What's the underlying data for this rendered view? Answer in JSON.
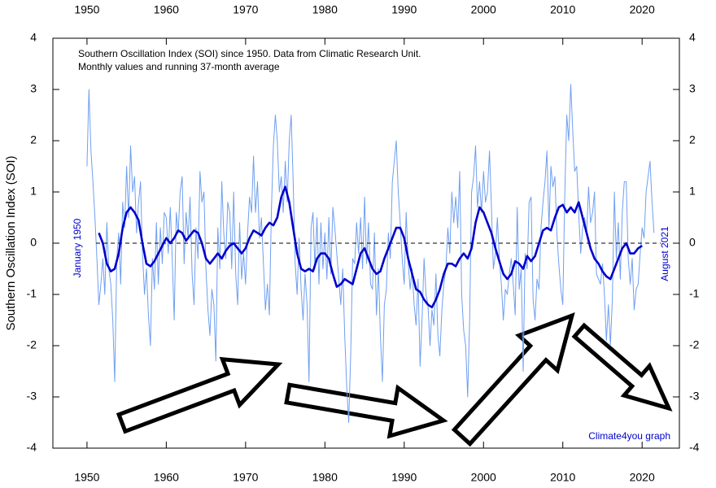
{
  "chart_data": {
    "type": "line",
    "title": "Southern Oscillation Index (SOI) since 1950. Data from Climatic Research Unit.",
    "subtitle": "Monthly values and running 37-month average",
    "ylabel": "Southern Oscillation Index (SOI)",
    "annotations": [
      "January 1950",
      "August 2021",
      "Climate4you graph"
    ],
    "xlim": [
      1945.7,
      2024.7
    ],
    "xticks": [
      1950,
      1960,
      1970,
      1980,
      1990,
      2000,
      2010,
      2020
    ],
    "ylim": [
      -4,
      4
    ],
    "yticks": [
      -4,
      -3,
      -2,
      -1,
      0,
      1,
      2,
      3,
      4
    ],
    "reference_line": 0,
    "series": [
      {
        "color": "#6f9ff0",
        "x": [
          1950,
          1950.25,
          1950.5,
          1950.75,
          1951,
          1951.25,
          1951.5,
          1951.75,
          1952,
          1952.25,
          1952.5,
          1952.75,
          1953,
          1953.25,
          1953.5,
          1953.75,
          1954,
          1954.25,
          1954.5,
          1954.75,
          1955,
          1955.25,
          1955.5,
          1955.75,
          1956,
          1956.25,
          1956.5,
          1956.75,
          1957,
          1957.25,
          1957.5,
          1957.75,
          1958,
          1958.25,
          1958.5,
          1958.75,
          1959,
          1959.25,
          1959.5,
          1959.75,
          1960,
          1960.25,
          1960.5,
          1960.75,
          1961,
          1961.25,
          1961.5,
          1961.75,
          1962,
          1962.25,
          1962.5,
          1962.75,
          1963,
          1963.25,
          1963.5,
          1963.75,
          1964,
          1964.25,
          1964.5,
          1964.75,
          1965,
          1965.25,
          1965.5,
          1965.75,
          1966,
          1966.25,
          1966.5,
          1966.75,
          1967,
          1967.25,
          1967.5,
          1967.75,
          1968,
          1968.25,
          1968.5,
          1968.75,
          1969,
          1969.25,
          1969.5,
          1969.75,
          1970,
          1970.25,
          1970.5,
          1970.75,
          1971,
          1971.25,
          1971.5,
          1971.75,
          1972,
          1972.25,
          1972.5,
          1972.75,
          1973,
          1973.25,
          1973.5,
          1973.75,
          1974,
          1974.25,
          1974.5,
          1974.75,
          1975,
          1975.25,
          1975.5,
          1975.75,
          1976,
          1976.25,
          1976.5,
          1976.75,
          1977,
          1977.25,
          1977.5,
          1977.75,
          1978,
          1978.25,
          1978.5,
          1978.75,
          1979,
          1979.25,
          1979.5,
          1979.75,
          1980,
          1980.25,
          1980.5,
          1980.75,
          1981,
          1981.25,
          1981.5,
          1981.75,
          1982,
          1982.25,
          1982.5,
          1982.75,
          1983,
          1983.25,
          1983.5,
          1983.75,
          1984,
          1984.25,
          1984.5,
          1984.75,
          1985,
          1985.25,
          1985.5,
          1985.75,
          1986,
          1986.25,
          1986.5,
          1986.75,
          1987,
          1987.25,
          1987.5,
          1987.75,
          1988,
          1988.25,
          1988.5,
          1988.75,
          1989,
          1989.25,
          1989.5,
          1989.75,
          1990,
          1990.25,
          1990.5,
          1990.75,
          1991,
          1991.25,
          1991.5,
          1991.75,
          1992,
          1992.25,
          1992.5,
          1992.75,
          1993,
          1993.25,
          1993.5,
          1993.75,
          1994,
          1994.25,
          1994.5,
          1994.75,
          1995,
          1995.25,
          1995.5,
          1995.75,
          1996,
          1996.25,
          1996.5,
          1996.75,
          1997,
          1997.25,
          1997.5,
          1997.75,
          1998,
          1998.25,
          1998.5,
          1998.75,
          1999,
          1999.25,
          1999.5,
          1999.75,
          2000,
          2000.25,
          2000.5,
          2000.75,
          2001,
          2001.25,
          2001.5,
          2001.75,
          2002,
          2002.25,
          2002.5,
          2002.75,
          2003,
          2003.25,
          2003.5,
          2003.75,
          2004,
          2004.25,
          2004.5,
          2004.75,
          2005,
          2005.25,
          2005.5,
          2005.75,
          2006,
          2006.25,
          2006.5,
          2006.75,
          2007,
          2007.25,
          2007.5,
          2007.75,
          2008,
          2008.25,
          2008.5,
          2008.75,
          2009,
          2009.25,
          2009.5,
          2009.75,
          2010,
          2010.25,
          2010.5,
          2010.75,
          2011,
          2011.25,
          2011.5,
          2011.75,
          2012,
          2012.25,
          2012.5,
          2012.75,
          2013,
          2013.25,
          2013.5,
          2013.75,
          2014,
          2014.25,
          2014.5,
          2014.75,
          2015,
          2015.25,
          2015.5,
          2015.75,
          2016,
          2016.25,
          2016.5,
          2016.75,
          2017,
          2017.25,
          2017.5,
          2017.75,
          2018,
          2018.25,
          2018.5,
          2018.75,
          2019,
          2019.25,
          2019.5,
          2019.75,
          2020,
          2020.25,
          2020.5,
          2020.75,
          2021,
          2021.25,
          2021.5
        ],
        "values": [
          1.5,
          3.0,
          1.8,
          1.2,
          0.5,
          -0.3,
          -1.2,
          -0.8,
          -0.3,
          -1.0,
          0.4,
          -0.5,
          -0.8,
          -1.5,
          -2.7,
          -0.3,
          0.2,
          -0.8,
          0.8,
          0.3,
          1.5,
          0.5,
          1.9,
          1.0,
          1.3,
          0.2,
          0.8,
          1.2,
          -0.2,
          -1.0,
          -0.5,
          -1.4,
          -2.0,
          -0.3,
          -0.9,
          0.4,
          -0.8,
          0.3,
          -0.4,
          0.6,
          0.5,
          -0.2,
          0.7,
          -0.3,
          -1.5,
          0.6,
          0.2,
          1.0,
          1.3,
          -0.4,
          0.6,
          0.1,
          0.9,
          -0.6,
          -1.2,
          0.3,
          -0.3,
          1.4,
          0.8,
          1.0,
          -0.5,
          -1.3,
          -1.8,
          -0.9,
          -1.2,
          -2.3,
          0.3,
          -0.5,
          1.2,
          0.2,
          -0.3,
          0.8,
          0.6,
          -0.5,
          1.0,
          -0.6,
          -1.2,
          0.4,
          -0.7,
          -0.2,
          -0.8,
          0.2,
          0.9,
          0.6,
          1.7,
          0.6,
          1.2,
          0.1,
          0.5,
          -0.4,
          -1.3,
          -0.8,
          -1.4,
          0.6,
          1.9,
          2.5,
          2.0,
          1.0,
          1.3,
          0.6,
          1.6,
          0.8,
          2.0,
          2.5,
          1.2,
          -0.4,
          -1.0,
          0.1,
          -0.9,
          -1.5,
          -0.6,
          -1.2,
          -2.7,
          0.3,
          0.6,
          -0.5,
          0.5,
          -0.8,
          0.4,
          -0.5,
          0.2,
          -0.7,
          0.5,
          -0.6,
          0.7,
          0.3,
          -0.2,
          -0.7,
          -1.2,
          -0.5,
          -1.8,
          -2.8,
          -3.5,
          -2.2,
          -0.3,
          -0.4,
          0.4,
          -0.2,
          0.5,
          -0.5,
          0.9,
          -0.4,
          0.4,
          -0.8,
          -0.9,
          0.2,
          -1.4,
          -0.5,
          -1.8,
          -2.7,
          -1.2,
          -0.9,
          0.2,
          -0.3,
          1.2,
          1.6,
          2.0,
          1.0,
          0.4,
          -0.3,
          -0.8,
          0.6,
          -0.4,
          -0.9,
          -0.5,
          -1.2,
          -1.6,
          -0.7,
          -2.4,
          -1.5,
          -0.3,
          -1.0,
          -1.2,
          -2.0,
          -1.3,
          -1.6,
          -0.6,
          -1.8,
          -2.2,
          -1.3,
          -0.8,
          -0.5,
          0.3,
          -0.2,
          1.0,
          0.4,
          0.9,
          0.3,
          1.4,
          -1.0,
          -1.7,
          -2.0,
          -3.0,
          -1.5,
          1.0,
          1.3,
          1.9,
          0.7,
          1.2,
          0.6,
          1.4,
          0.8,
          1.0,
          1.8,
          0.7,
          -0.5,
          -0.2,
          0.5,
          -0.3,
          -0.8,
          -1.5,
          -0.9,
          -1.0,
          -0.6,
          -0.3,
          -0.8,
          -1.4,
          0.7,
          -0.9,
          -0.5,
          -2.5,
          -0.2,
          -0.5,
          0.8,
          0.9,
          -1.1,
          -1.5,
          -0.7,
          -0.9,
          0.3,
          0.8,
          1.2,
          1.8,
          0.3,
          1.5,
          1.1,
          1.3,
          0.2,
          -0.4,
          -0.9,
          -1.2,
          1.0,
          2.5,
          2.0,
          3.1,
          2.2,
          1.4,
          1.5,
          0.6,
          -0.2,
          0.3,
          0.5,
          0.2,
          1.1,
          0.4,
          0.6,
          1.0,
          -0.6,
          -0.7,
          -0.8,
          -0.4,
          -1.0,
          -1.9,
          -1.2,
          -2.0,
          -1.1,
          1.0,
          -0.3,
          0.4,
          -0.7,
          0.6,
          1.2,
          1.2,
          -0.3,
          -0.8,
          -0.3,
          -1.3,
          -0.9,
          -0.8,
          -0.2,
          0.3,
          0.1,
          1.0,
          1.3,
          1.6,
          0.8,
          0.2
        ]
      },
      {
        "color": "#0000cc",
        "x": [
          1951.5,
          1952,
          1952.5,
          1953,
          1953.5,
          1954,
          1954.5,
          1955,
          1955.5,
          1956,
          1956.5,
          1957,
          1957.5,
          1958,
          1958.5,
          1959,
          1959.5,
          1960,
          1960.5,
          1961,
          1961.5,
          1962,
          1962.5,
          1963,
          1963.5,
          1964,
          1964.5,
          1965,
          1965.5,
          1966,
          1966.5,
          1967,
          1967.5,
          1968,
          1968.5,
          1969,
          1969.5,
          1970,
          1970.5,
          1971,
          1971.5,
          1972,
          1972.5,
          1973,
          1973.5,
          1974,
          1974.5,
          1975,
          1975.5,
          1976,
          1976.5,
          1977,
          1977.5,
          1978,
          1978.5,
          1979,
          1979.5,
          1980,
          1980.5,
          1981,
          1981.5,
          1982,
          1982.5,
          1983,
          1983.5,
          1984,
          1984.5,
          1985,
          1985.5,
          1986,
          1986.5,
          1987,
          1987.5,
          1988,
          1988.5,
          1989,
          1989.5,
          1990,
          1990.5,
          1991,
          1991.5,
          1992,
          1992.5,
          1993,
          1993.5,
          1994,
          1994.5,
          1995,
          1995.5,
          1996,
          1996.5,
          1997,
          1997.5,
          1998,
          1998.5,
          1999,
          1999.5,
          2000,
          2000.5,
          2001,
          2001.5,
          2002,
          2002.5,
          2003,
          2003.5,
          2004,
          2004.5,
          2005,
          2005.5,
          2006,
          2006.5,
          2007,
          2007.5,
          2008,
          2008.5,
          2009,
          2009.5,
          2010,
          2010.5,
          2011,
          2011.5,
          2012,
          2012.5,
          2013,
          2013.5,
          2014,
          2014.5,
          2015,
          2015.5,
          2016,
          2016.5,
          2017,
          2017.5,
          2018,
          2018.5,
          2019,
          2019.5,
          2020
        ],
        "values": [
          0.2,
          0.0,
          -0.4,
          -0.55,
          -0.5,
          -0.2,
          0.3,
          0.6,
          0.7,
          0.6,
          0.45,
          0.0,
          -0.4,
          -0.45,
          -0.35,
          -0.2,
          -0.05,
          0.1,
          0.0,
          0.1,
          0.25,
          0.2,
          0.05,
          0.15,
          0.25,
          0.2,
          0.0,
          -0.3,
          -0.4,
          -0.3,
          -0.2,
          -0.3,
          -0.15,
          -0.05,
          0.0,
          -0.1,
          -0.2,
          -0.1,
          0.1,
          0.25,
          0.2,
          0.15,
          0.3,
          0.4,
          0.35,
          0.5,
          0.9,
          1.1,
          0.8,
          0.3,
          -0.2,
          -0.5,
          -0.55,
          -0.5,
          -0.55,
          -0.3,
          -0.2,
          -0.2,
          -0.3,
          -0.6,
          -0.85,
          -0.8,
          -0.7,
          -0.75,
          -0.8,
          -0.5,
          -0.2,
          -0.1,
          -0.3,
          -0.5,
          -0.6,
          -0.55,
          -0.3,
          -0.1,
          0.1,
          0.3,
          0.3,
          0.1,
          -0.3,
          -0.6,
          -0.9,
          -0.95,
          -1.1,
          -1.2,
          -1.25,
          -1.1,
          -0.9,
          -0.6,
          -0.4,
          -0.4,
          -0.45,
          -0.3,
          -0.2,
          -0.3,
          -0.1,
          0.4,
          0.7,
          0.6,
          0.4,
          0.2,
          -0.1,
          -0.35,
          -0.6,
          -0.7,
          -0.6,
          -0.35,
          -0.4,
          -0.5,
          -0.25,
          -0.35,
          -0.25,
          0.0,
          0.25,
          0.3,
          0.25,
          0.5,
          0.7,
          0.75,
          0.6,
          0.7,
          0.6,
          0.8,
          0.5,
          0.2,
          -0.1,
          -0.3,
          -0.4,
          -0.55,
          -0.65,
          -0.7,
          -0.5,
          -0.3,
          -0.1,
          0.0,
          -0.2,
          -0.2,
          -0.1,
          -0.05
        ]
      }
    ]
  }
}
